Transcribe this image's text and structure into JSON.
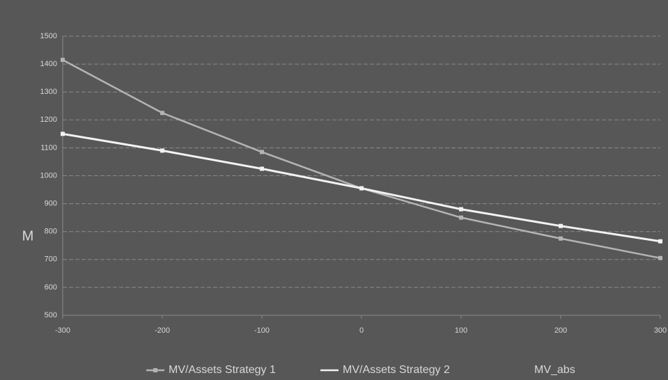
{
  "chart_data": {
    "type": "line",
    "y_label": "M",
    "x": [
      -300,
      -200,
      -100,
      0,
      100,
      200,
      300
    ],
    "series": [
      {
        "name": "MV/Assets Strategy 1",
        "color": "#b4b4b4",
        "values": [
          1415,
          1225,
          1085,
          955,
          850,
          775,
          705
        ]
      },
      {
        "name": "MV/Assets Strategy 2",
        "color": "#f2f2f2",
        "values": [
          1150,
          1090,
          1025,
          955,
          880,
          820,
          765
        ]
      },
      {
        "name": "MV_abs",
        "color": "#9a9a9a",
        "values": [
          null,
          null,
          null,
          null,
          null,
          null,
          null
        ]
      }
    ],
    "xlim": [
      -300,
      300
    ],
    "xticks": [
      -300,
      -200,
      -100,
      0,
      100,
      200,
      300
    ],
    "ylim": [
      500,
      1500
    ],
    "yticks": [
      500,
      600,
      700,
      800,
      900,
      1000,
      1100,
      1200,
      1300,
      1400,
      1500
    ],
    "grid": true
  }
}
